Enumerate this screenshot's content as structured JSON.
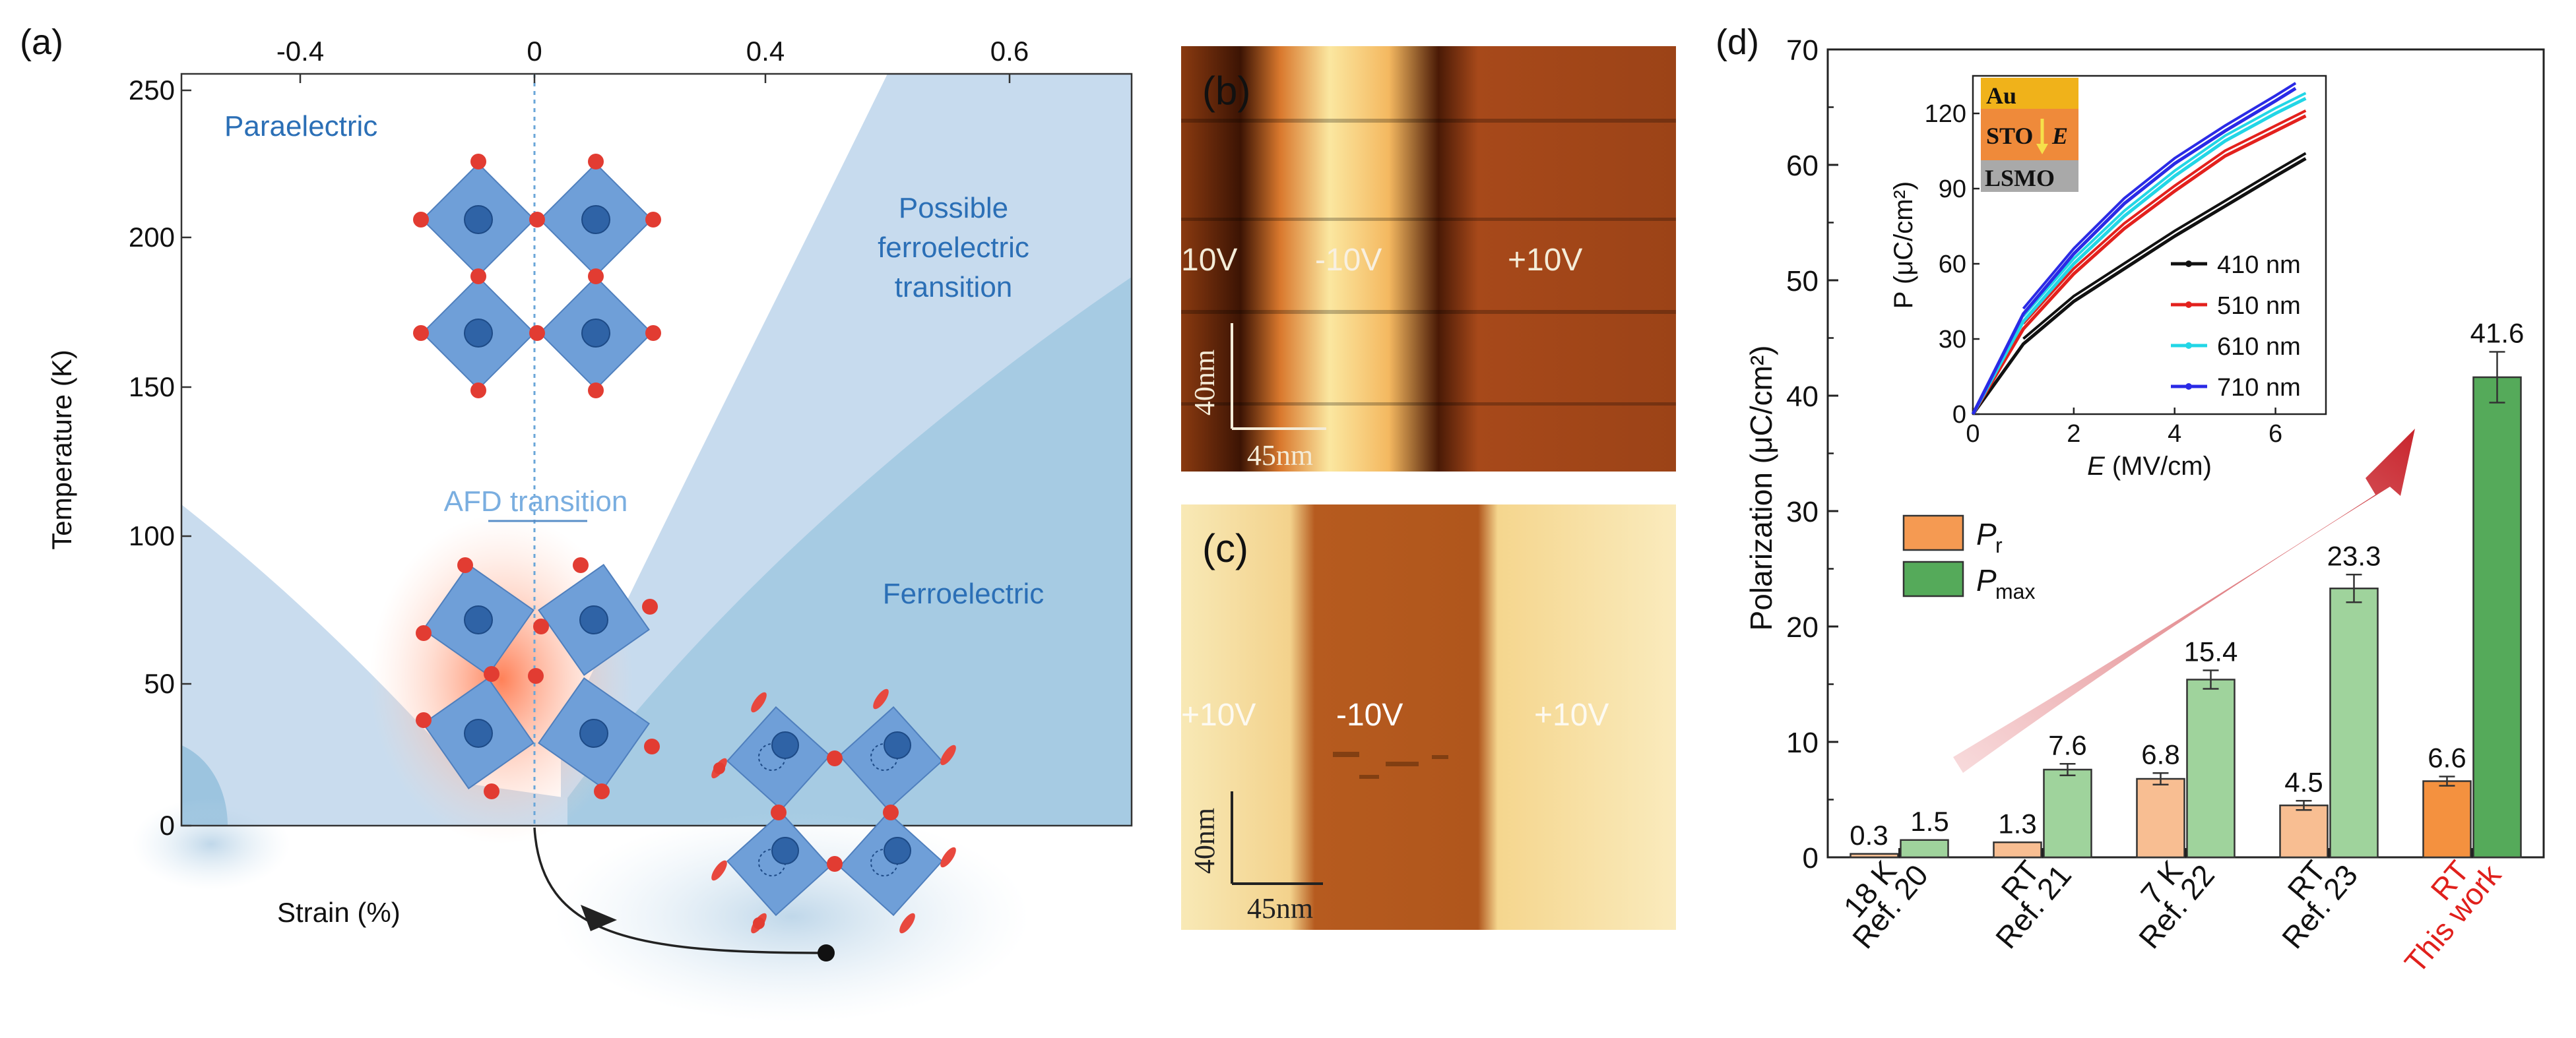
{
  "colors": {
    "text": "#111111",
    "blue_text": "#2b6fb6",
    "light_blue": "#c7dbee",
    "mid_blue": "#a9cce4",
    "octa_blue": "#6f9fd8",
    "octa_dark": "#2f63a6",
    "atom_red": "#e23c32",
    "pr_orange": "#f59a52",
    "pmax_green": "#55aa5a",
    "arrow_red": "#c8242c",
    "highlight_red": "#e0201c"
  },
  "panel_a": {
    "label": "(a)",
    "regions": {
      "paraelectric": "Paraelectric",
      "possible": [
        "Possible",
        "ferroelectric",
        "transition"
      ],
      "afd": "AFD transition",
      "ferro": "Ferroelectric"
    },
    "xlabel": "Strain (%)",
    "ylabel": "Temperature (K)",
    "y_ticks": [
      "250",
      "200",
      "150",
      "100",
      "50",
      "0"
    ],
    "x_ticks": [
      "-0.4",
      "0",
      "0.4",
      "0.6"
    ],
    "chart_data": {
      "type": "phase diagram",
      "x_range": [
        -0.55,
        0.7
      ],
      "y_range": [
        0,
        250
      ],
      "regions": [
        "Paraelectric",
        "Possible ferroelectric transition",
        "AFD transition",
        "Ferroelectric"
      ]
    }
  },
  "panel_b": {
    "label": "(b)",
    "texts": [
      "10V",
      "-10V",
      "+10V"
    ],
    "scale_v": "40nm",
    "scale_h": "45nm"
  },
  "panel_c": {
    "label": "(c)",
    "texts": [
      "+10V",
      "-10V",
      "+10V"
    ],
    "scale_v": "40nm",
    "scale_h": "45nm"
  },
  "panel_d": {
    "label": "(d)",
    "ylabel": "Polarization (μC/cm²)",
    "y_ticks": [
      "0",
      "10",
      "20",
      "30",
      "40",
      "50",
      "60",
      "70"
    ],
    "legend_pr": "P",
    "legend_pr_sub": "r",
    "legend_pmax": "P",
    "legend_pmax_sub": "max",
    "chart_data": {
      "type": "bar",
      "title": "",
      "ylabel": "Polarization (μC/cm²)",
      "ylim": [
        0,
        70
      ],
      "categories": [
        {
          "top": "18 K",
          "bottom": "Ref. 20",
          "highlight": false
        },
        {
          "top": "RT",
          "bottom": "Ref. 21",
          "highlight": false
        },
        {
          "top": "7 K",
          "bottom": "Ref. 22",
          "highlight": false
        },
        {
          "top": "RT",
          "bottom": "Ref. 23",
          "highlight": false
        },
        {
          "top": "RT",
          "bottom": "This work",
          "highlight": true
        }
      ],
      "series": [
        {
          "name": "Pr",
          "values": [
            0.3,
            1.3,
            6.8,
            4.5,
            6.6
          ],
          "labels": [
            "0.3",
            "1.3",
            "6.8",
            "4.5",
            "6.6"
          ]
        },
        {
          "name": "Pmax",
          "values": [
            1.5,
            7.6,
            15.4,
            23.3,
            41.6
          ],
          "labels": [
            "1.5",
            "7.6",
            "15.4",
            "23.3",
            "41.6"
          ]
        }
      ],
      "errors": {
        "Pr": [
          0,
          0,
          0.5,
          0.4,
          0.4
        ],
        "Pmax": [
          0,
          0.5,
          0.8,
          1.2,
          2.2
        ]
      }
    },
    "inset": {
      "xlabel": "E (MV/cm)",
      "xlabel_var": "E",
      "xlabel_unit": " (MV/cm)",
      "ylabel": "P (μC/cm²)",
      "x_ticks": [
        "0",
        "2",
        "4",
        "6"
      ],
      "y_ticks": [
        "0",
        "30",
        "60",
        "90",
        "120"
      ],
      "stack": [
        "Au",
        "STO",
        "E",
        "LSMO"
      ],
      "chart_data": {
        "type": "line",
        "xlim": [
          0,
          7
        ],
        "ylim": [
          0,
          135
        ],
        "series": [
          {
            "name": "410 nm",
            "color": "#111111",
            "x": [
              0,
              1,
              2,
              3,
              4,
              5,
              6,
              6.6
            ],
            "y": [
              0,
              28,
              45,
              58,
              71,
              83,
              95,
              102
            ]
          },
          {
            "name": "510 nm",
            "color": "#e3211d",
            "x": [
              0,
              1,
              2,
              3,
              4,
              5,
              6,
              6.6
            ],
            "y": [
              0,
              34,
              56,
              74,
              89,
              103,
              113,
              119
            ]
          },
          {
            "name": "610 nm",
            "color": "#22d6e6",
            "x": [
              0,
              1,
              2,
              3,
              4,
              5,
              6,
              6.6
            ],
            "y": [
              0,
              37,
              60,
              79,
              95,
              109,
              120,
              126
            ]
          },
          {
            "name": "710 nm",
            "color": "#2a2ae6",
            "x": [
              0,
              1,
              2,
              3,
              4,
              5,
              6,
              6.4
            ],
            "y": [
              0,
              40,
              64,
              84,
              100,
              113,
              125,
              130
            ]
          }
        ]
      }
    }
  }
}
